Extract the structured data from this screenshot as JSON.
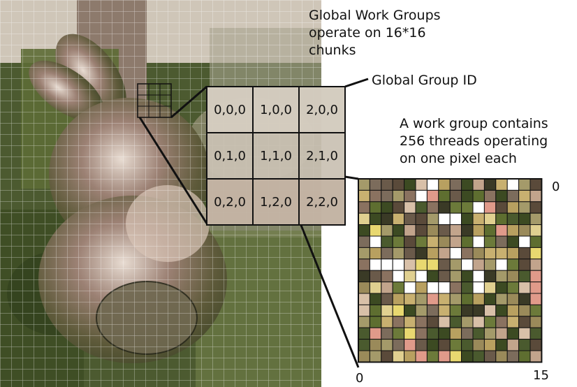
{
  "annotations": {
    "work_groups_lines": [
      "Global Work Groups",
      "operate on 16*16",
      "chunks"
    ],
    "group_id_label": "Global Group ID",
    "work_group_lines": [
      "A work group contains",
      "256 threads operating",
      "on one pixel each"
    ]
  },
  "group_grid": {
    "ids": [
      [
        "0,0,0",
        "1,0,0",
        "2,0,0"
      ],
      [
        "0,1,0",
        "1,1,0",
        "2,1,0"
      ],
      [
        "0,2,0",
        "1,2,0",
        "2,2,0"
      ]
    ]
  },
  "pixel_grid": {
    "axis_top_right": "0",
    "axis_bottom_left": "0",
    "axis_bottom_right": "15",
    "size": 16
  },
  "colors": {
    "foliage_dark": "#3a4a26",
    "foliage_mid": "#5c6b34",
    "bark": "#7a6a5a",
    "bunny_chrome": "#8a7468",
    "grid_line": "#ffffff",
    "outline": "#111111"
  }
}
